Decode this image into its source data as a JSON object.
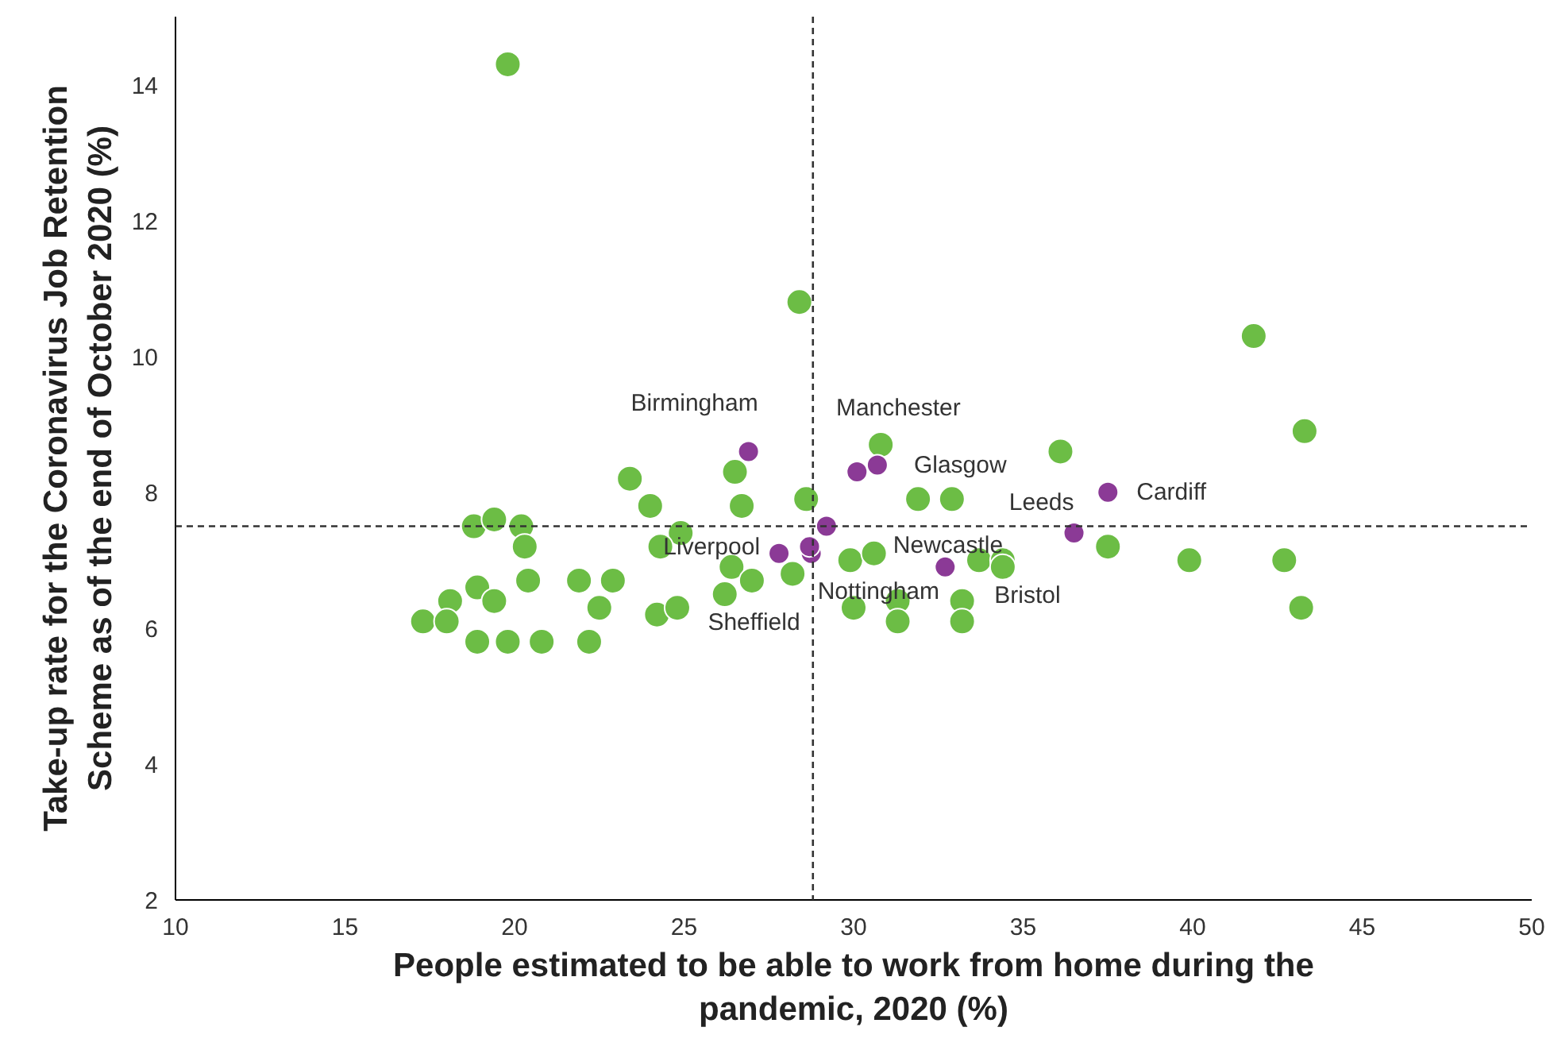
{
  "chart_data": {
    "type": "scatter",
    "xlabel": "People estimated to be able to work from home during the pandemic, 2020 (%)",
    "ylabel": "Take-up rate for the Coronavirus Job Retention Scheme as of the end of October 2020 (%)",
    "xlim": [
      10,
      50
    ],
    "ylim": [
      2,
      15
    ],
    "xticks": [
      10,
      15,
      20,
      25,
      30,
      35,
      40,
      45,
      50
    ],
    "yticks": [
      2,
      4,
      6,
      8,
      10,
      12,
      14
    ],
    "grid": false,
    "marker": "circle",
    "series": [
      {
        "color": "#6cbd45",
        "x": [
          19.8,
          28.4,
          41.8,
          43.3,
          36.1,
          30.8,
          26.5,
          23.4,
          24.0,
          26.7,
          28.6,
          31.9,
          32.9,
          18.8,
          19.4,
          20.2,
          20.3,
          24.9,
          24.3,
          26.4,
          27.0,
          28.2,
          29.9,
          30.6,
          33.7,
          34.4,
          34.4,
          37.5,
          39.9,
          42.7,
          43.2,
          18.1,
          17.3,
          18.0,
          18.9,
          19.4,
          20.4,
          21.9,
          22.9,
          22.5,
          18.9,
          19.8,
          20.8,
          22.2,
          24.2,
          24.8,
          26.2,
          30.0,
          31.3,
          31.3,
          33.2,
          33.2
        ],
        "values": [
          14.3,
          10.8,
          10.3,
          8.9,
          8.6,
          8.7,
          8.3,
          8.2,
          7.8,
          7.8,
          7.9,
          7.9,
          7.9,
          7.5,
          7.6,
          7.5,
          7.2,
          7.4,
          7.2,
          6.9,
          6.7,
          6.8,
          7.0,
          7.1,
          7.0,
          7.0,
          6.9,
          7.2,
          7.0,
          7.0,
          6.3,
          6.4,
          6.1,
          6.1,
          6.6,
          6.4,
          6.7,
          6.7,
          6.7,
          6.3,
          5.8,
          5.8,
          5.8,
          5.8,
          6.2,
          6.3,
          6.5,
          6.3,
          6.4,
          6.1,
          6.4,
          6.1
        ]
      },
      {
        "color": "#8b3a96",
        "x": [
          26.9,
          30.1,
          30.7,
          37.5,
          36.5,
          29.2,
          28.75,
          28.7,
          27.8,
          32.7
        ],
        "values": [
          8.6,
          8.3,
          8.4,
          8.0,
          7.4,
          7.5,
          7.1,
          7.2,
          7.1,
          6.9
        ]
      }
    ],
    "annotations": [
      {
        "text": "Birmingham",
        "x": 26.9,
        "y": 8.6
      },
      {
        "text": "Manchester",
        "x": 30.1,
        "y": 8.3
      },
      {
        "text": "Glasgow",
        "x": 30.7,
        "y": 8.4
      },
      {
        "text": "Cardiff",
        "x": 37.5,
        "y": 8.0
      },
      {
        "text": "Leeds",
        "x": 36.5,
        "y": 7.4
      },
      {
        "text": "Newcastle",
        "x": 29.2,
        "y": 7.5
      },
      {
        "text": "Nottingham",
        "x": 28.75,
        "y": 7.1
      },
      {
        "text": "Sheffield",
        "x": 28.7,
        "y": 7.2
      },
      {
        "text": "Liverpool",
        "x": 27.8,
        "y": 7.1
      },
      {
        "text": "Bristol",
        "x": 32.7,
        "y": 6.9
      }
    ],
    "ref_lines": [
      {
        "axis": "x",
        "value": 28.8,
        "color": "#333333",
        "line_style": "dashed"
      },
      {
        "axis": "y",
        "value": 7.5,
        "color": "#333333",
        "line_style": "dashed"
      }
    ]
  }
}
